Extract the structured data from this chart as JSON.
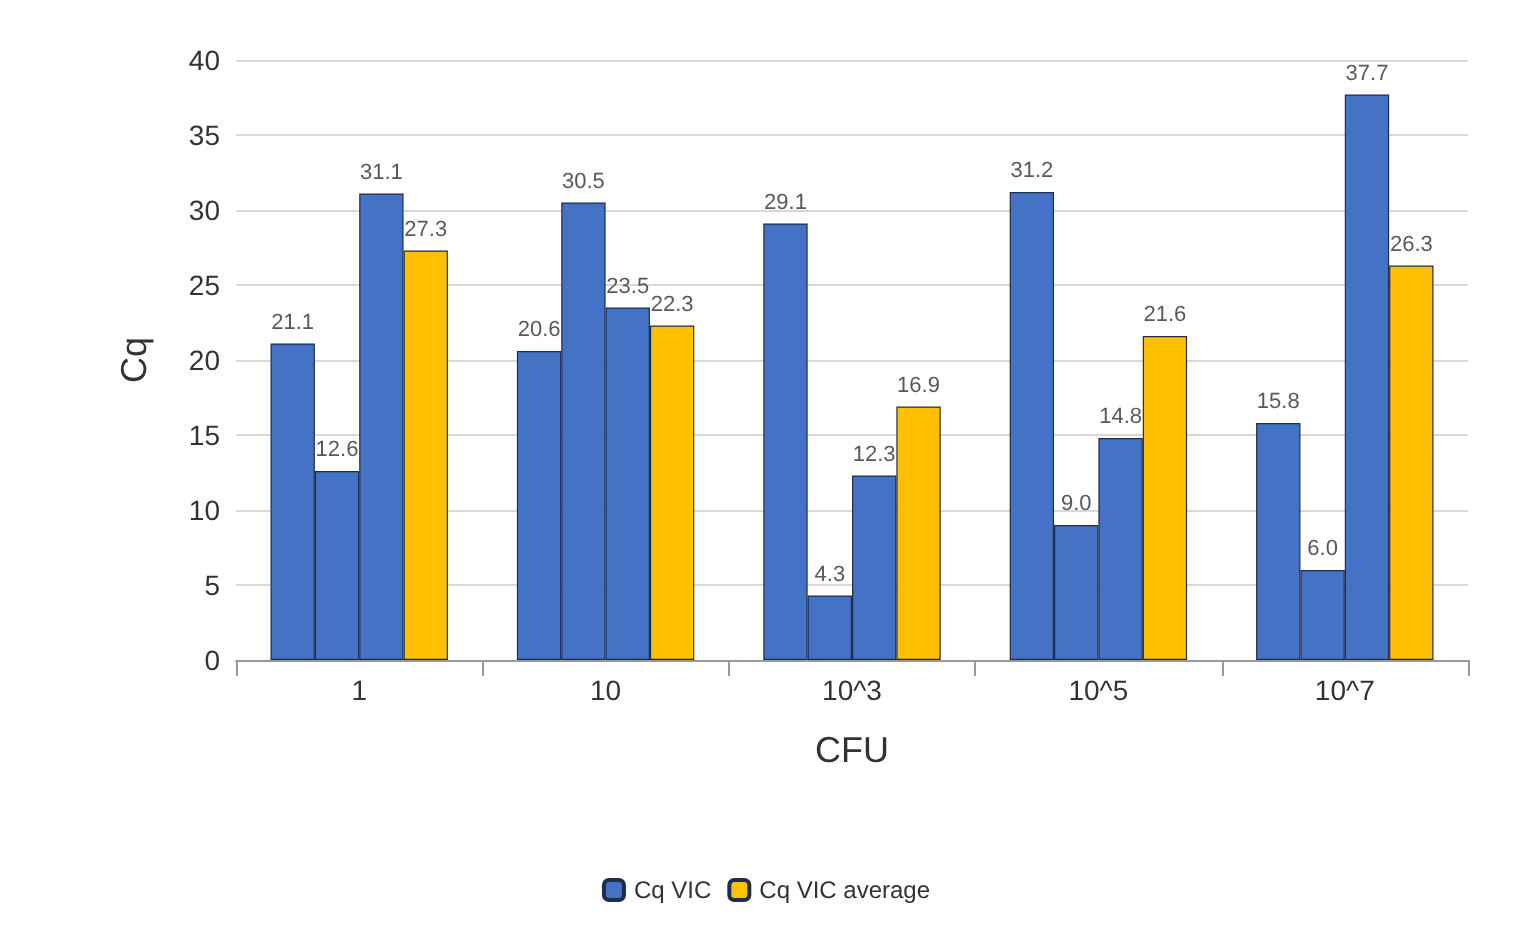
{
  "chart_data": {
    "type": "bar",
    "xlabel": "CFU",
    "ylabel": "Cq",
    "categories": [
      "1",
      "10",
      "10^3",
      "10^5",
      "10^7"
    ],
    "series": [
      {
        "name": "Cq VIC",
        "color": "#4472c4",
        "values": [
          21.1,
          20.6,
          29.1,
          31.2,
          15.8
        ],
        "value_labels": [
          "21.1",
          "20.6",
          "29.1",
          "31.2",
          "15.8"
        ]
      },
      {
        "color": "#4472c4",
        "values": [
          12.6,
          30.5,
          4.3,
          9.0,
          6.0
        ],
        "value_labels": [
          "12.6",
          "30.5",
          "4.3",
          "9.0",
          "6.0"
        ]
      },
      {
        "color": "#4472c4",
        "values": [
          31.1,
          23.5,
          12.3,
          14.8,
          37.7
        ],
        "value_labels": [
          "31.1",
          "23.5",
          "12.3",
          "14.8",
          "37.7"
        ]
      },
      {
        "name": "Cq VIC average",
        "color": "#ffc000",
        "values": [
          27.3,
          22.3,
          16.9,
          21.6,
          26.3
        ],
        "value_labels": [
          "27.3",
          "22.3",
          "16.9",
          "21.6",
          "26.3"
        ]
      }
    ],
    "ylim": [
      0,
      40
    ],
    "yticks": [
      0,
      5,
      10,
      15,
      20,
      25,
      30,
      35,
      40
    ],
    "grid": "y",
    "legend": "bottom"
  }
}
